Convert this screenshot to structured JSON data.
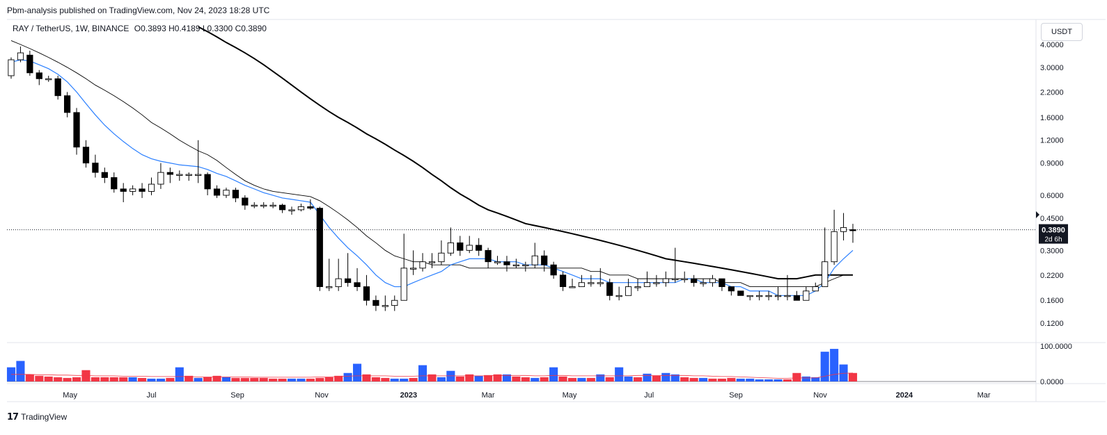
{
  "header": {
    "publisher_line": "Pbm-analysis published on TradingView.com, Nov 24, 2023 18:28 UTC"
  },
  "legend": {
    "symbol": "RAY / TetherUS, 1W, BINANCE",
    "open": "O0.3893",
    "high": "H0.4189",
    "low": "L0.3300",
    "close": "C0.3890"
  },
  "currency": "USDT",
  "price_tag": {
    "price": "0.3890",
    "countdown": "2d 6h"
  },
  "footer": {
    "brand": "TradingView"
  },
  "colors": {
    "up_candle_fill": "#ffffff",
    "down_candle_fill": "#000000",
    "volume_up": "#2962ff",
    "volume_down": "#f23645",
    "ema_fast": "#2a7fff",
    "ma_mid": "#000000",
    "ma_slow": "#000000"
  },
  "chart_data": [
    {
      "type": "candlestick",
      "timeframe": "1W",
      "y_scale": "log",
      "ylim": [
        0.1,
        5.2
      ],
      "y_ticks": [
        "4.0000",
        "3.0000",
        "2.2000",
        "1.6000",
        "1.2000",
        "0.9000",
        "0.6000",
        "0.4500",
        "0.3000",
        "0.2200",
        "0.1600",
        "0.1200"
      ],
      "x_ticks": [
        "May",
        "Jul",
        "Sep",
        "Nov",
        "2023",
        "Mar",
        "May",
        "Jul",
        "Sep",
        "Nov",
        "2024",
        "Mar"
      ],
      "candles": [
        [
          2.7,
          3.3,
          3.4,
          2.6
        ],
        [
          3.3,
          3.6,
          3.9,
          3.2
        ],
        [
          3.5,
          2.8,
          3.7,
          2.7
        ],
        [
          2.8,
          2.6,
          2.9,
          2.4
        ],
        [
          2.6,
          2.6,
          2.7,
          2.5
        ],
        [
          2.6,
          2.1,
          2.7,
          2.0
        ],
        [
          2.1,
          1.7,
          2.2,
          1.6
        ],
        [
          1.7,
          1.1,
          1.8,
          1.0
        ],
        [
          1.1,
          0.9,
          1.2,
          0.85
        ],
        [
          0.9,
          0.8,
          1.0,
          0.75
        ],
        [
          0.8,
          0.75,
          0.85,
          0.7
        ],
        [
          0.75,
          0.65,
          0.8,
          0.62
        ],
        [
          0.65,
          0.63,
          0.7,
          0.55
        ],
        [
          0.63,
          0.65,
          0.68,
          0.6
        ],
        [
          0.65,
          0.63,
          0.7,
          0.58
        ],
        [
          0.63,
          0.69,
          0.75,
          0.6
        ],
        [
          0.69,
          0.8,
          0.9,
          0.65
        ],
        [
          0.8,
          0.78,
          0.85,
          0.7
        ],
        [
          0.78,
          0.78,
          0.82,
          0.72
        ],
        [
          0.78,
          0.78,
          0.8,
          0.72
        ],
        [
          0.78,
          0.78,
          1.2,
          0.7
        ],
        [
          0.78,
          0.65,
          0.8,
          0.6
        ],
        [
          0.65,
          0.6,
          0.68,
          0.58
        ],
        [
          0.6,
          0.64,
          0.66,
          0.58
        ],
        [
          0.64,
          0.58,
          0.66,
          0.55
        ],
        [
          0.58,
          0.53,
          0.6,
          0.5
        ],
        [
          0.53,
          0.53,
          0.55,
          0.51
        ],
        [
          0.53,
          0.53,
          0.55,
          0.51
        ],
        [
          0.53,
          0.53,
          0.55,
          0.51
        ],
        [
          0.53,
          0.5,
          0.54,
          0.48
        ],
        [
          0.5,
          0.5,
          0.52,
          0.47
        ],
        [
          0.5,
          0.52,
          0.54,
          0.49
        ],
        [
          0.52,
          0.51,
          0.57,
          0.5
        ],
        [
          0.51,
          0.19,
          0.52,
          0.18
        ],
        [
          0.19,
          0.19,
          0.27,
          0.18
        ],
        [
          0.19,
          0.21,
          0.27,
          0.18
        ],
        [
          0.21,
          0.2,
          0.29,
          0.19
        ],
        [
          0.2,
          0.19,
          0.24,
          0.18
        ],
        [
          0.19,
          0.16,
          0.22,
          0.15
        ],
        [
          0.16,
          0.15,
          0.17,
          0.14
        ],
        [
          0.15,
          0.15,
          0.17,
          0.14
        ],
        [
          0.15,
          0.16,
          0.17,
          0.14
        ],
        [
          0.16,
          0.24,
          0.37,
          0.16
        ],
        [
          0.24,
          0.24,
          0.3,
          0.22
        ],
        [
          0.24,
          0.26,
          0.29,
          0.23
        ],
        [
          0.26,
          0.26,
          0.29,
          0.24
        ],
        [
          0.26,
          0.29,
          0.34,
          0.25
        ],
        [
          0.29,
          0.33,
          0.4,
          0.28
        ],
        [
          0.33,
          0.3,
          0.36,
          0.28
        ],
        [
          0.3,
          0.32,
          0.36,
          0.29
        ],
        [
          0.32,
          0.3,
          0.35,
          0.28
        ],
        [
          0.3,
          0.26,
          0.31,
          0.24
        ],
        [
          0.26,
          0.26,
          0.28,
          0.25
        ],
        [
          0.26,
          0.25,
          0.28,
          0.23
        ],
        [
          0.25,
          0.25,
          0.27,
          0.24
        ],
        [
          0.25,
          0.25,
          0.26,
          0.23
        ],
        [
          0.25,
          0.28,
          0.33,
          0.24
        ],
        [
          0.28,
          0.25,
          0.3,
          0.23
        ],
        [
          0.25,
          0.22,
          0.26,
          0.21
        ],
        [
          0.22,
          0.19,
          0.23,
          0.18
        ],
        [
          0.19,
          0.19,
          0.21,
          0.19
        ],
        [
          0.19,
          0.2,
          0.22,
          0.19
        ],
        [
          0.2,
          0.2,
          0.22,
          0.19
        ],
        [
          0.2,
          0.2,
          0.24,
          0.19
        ],
        [
          0.2,
          0.17,
          0.21,
          0.16
        ],
        [
          0.17,
          0.17,
          0.19,
          0.16
        ],
        [
          0.17,
          0.19,
          0.21,
          0.17
        ],
        [
          0.19,
          0.19,
          0.21,
          0.18
        ],
        [
          0.19,
          0.2,
          0.23,
          0.19
        ],
        [
          0.2,
          0.2,
          0.22,
          0.19
        ],
        [
          0.2,
          0.21,
          0.23,
          0.19
        ],
        [
          0.21,
          0.21,
          0.31,
          0.2
        ],
        [
          0.21,
          0.21,
          0.23,
          0.2
        ],
        [
          0.21,
          0.2,
          0.22,
          0.19
        ],
        [
          0.2,
          0.2,
          0.21,
          0.19
        ],
        [
          0.2,
          0.21,
          0.22,
          0.19
        ],
        [
          0.21,
          0.19,
          0.21,
          0.18
        ],
        [
          0.19,
          0.18,
          0.19,
          0.17
        ],
        [
          0.18,
          0.17,
          0.18,
          0.17
        ],
        [
          0.17,
          0.17,
          0.17,
          0.16
        ],
        [
          0.17,
          0.17,
          0.18,
          0.16
        ],
        [
          0.17,
          0.17,
          0.18,
          0.16
        ],
        [
          0.17,
          0.17,
          0.19,
          0.16
        ],
        [
          0.17,
          0.17,
          0.22,
          0.16
        ],
        [
          0.17,
          0.16,
          0.18,
          0.16
        ],
        [
          0.16,
          0.18,
          0.19,
          0.16
        ],
        [
          0.18,
          0.19,
          0.2,
          0.18
        ],
        [
          0.19,
          0.26,
          0.4,
          0.19
        ],
        [
          0.26,
          0.38,
          0.5,
          0.25
        ],
        [
          0.38,
          0.4,
          0.48,
          0.34
        ],
        [
          0.3893,
          0.389,
          0.4189,
          0.33
        ]
      ],
      "ema_fast": [
        3.2,
        3.3,
        3.25,
        3.1,
        2.95,
        2.75,
        2.5,
        2.2,
        1.9,
        1.65,
        1.45,
        1.3,
        1.18,
        1.08,
        1.0,
        0.95,
        0.92,
        0.9,
        0.88,
        0.87,
        0.86,
        0.83,
        0.79,
        0.76,
        0.72,
        0.68,
        0.65,
        0.62,
        0.6,
        0.58,
        0.57,
        0.56,
        0.55,
        0.47,
        0.4,
        0.35,
        0.31,
        0.28,
        0.25,
        0.22,
        0.2,
        0.19,
        0.19,
        0.2,
        0.21,
        0.22,
        0.23,
        0.25,
        0.26,
        0.27,
        0.27,
        0.27,
        0.26,
        0.26,
        0.26,
        0.25,
        0.25,
        0.25,
        0.24,
        0.23,
        0.22,
        0.21,
        0.21,
        0.21,
        0.2,
        0.2,
        0.2,
        0.2,
        0.2,
        0.2,
        0.2,
        0.2,
        0.21,
        0.21,
        0.2,
        0.2,
        0.2,
        0.19,
        0.19,
        0.18,
        0.18,
        0.18,
        0.17,
        0.17,
        0.17,
        0.17,
        0.18,
        0.2,
        0.24,
        0.27,
        0.3
      ],
      "ma_mid": [
        4.2,
        4.0,
        3.8,
        3.6,
        3.4,
        3.2,
        3.0,
        2.8,
        2.6,
        2.4,
        2.25,
        2.1,
        1.95,
        1.8,
        1.65,
        1.5,
        1.4,
        1.3,
        1.2,
        1.12,
        1.05,
        1.0,
        0.93,
        0.85,
        0.78,
        0.72,
        0.68,
        0.65,
        0.63,
        0.62,
        0.61,
        0.6,
        0.59,
        0.56,
        0.52,
        0.48,
        0.44,
        0.4,
        0.36,
        0.33,
        0.3,
        0.28,
        0.27,
        0.26,
        0.26,
        0.25,
        0.25,
        0.25,
        0.25,
        0.24,
        0.24,
        0.24,
        0.24,
        0.24,
        0.24,
        0.24,
        0.24,
        0.24,
        0.24,
        0.24,
        0.24,
        0.24,
        0.23,
        0.23,
        0.22,
        0.22,
        0.22,
        0.21,
        0.21,
        0.21,
        0.21,
        0.21,
        0.21,
        0.21,
        0.21,
        0.21,
        0.2,
        0.2,
        0.2,
        0.19,
        0.19,
        0.19,
        0.19,
        0.19,
        0.19,
        0.19,
        0.19,
        0.2,
        0.21,
        0.22,
        0.22
      ],
      "ma_slow_start_index": 20,
      "ma_slow": [
        5.0,
        4.7,
        4.4,
        4.1,
        3.85,
        3.6,
        3.35,
        3.1,
        2.85,
        2.62,
        2.4,
        2.2,
        2.02,
        1.86,
        1.72,
        1.6,
        1.5,
        1.4,
        1.3,
        1.22,
        1.14,
        1.06,
        0.99,
        0.92,
        0.85,
        0.78,
        0.72,
        0.66,
        0.61,
        0.57,
        0.53,
        0.5,
        0.48,
        0.46,
        0.44,
        0.42,
        0.41,
        0.4,
        0.39,
        0.38,
        0.37,
        0.36,
        0.35,
        0.34,
        0.33,
        0.32,
        0.31,
        0.3,
        0.29,
        0.28,
        0.27,
        0.265,
        0.26,
        0.255,
        0.25,
        0.245,
        0.24,
        0.235,
        0.23,
        0.225,
        0.22,
        0.215,
        0.21,
        0.21,
        0.21,
        0.215,
        0.22,
        0.22,
        0.22,
        0.22,
        0.22
      ],
      "current_price_line": 0.389
    },
    {
      "type": "bar",
      "name": "volume",
      "y_ticks": [
        "100.0000",
        "0.0000"
      ],
      "ylim": [
        0,
        100
      ],
      "values": [
        40,
        58,
        20,
        16,
        14,
        12,
        10,
        12,
        32,
        12,
        12,
        12,
        12,
        12,
        10,
        8,
        8,
        10,
        40,
        16,
        10,
        12,
        16,
        12,
        10,
        10,
        10,
        10,
        8,
        8,
        8,
        8,
        8,
        10,
        12,
        16,
        24,
        50,
        20,
        12,
        10,
        8,
        8,
        10,
        46,
        20,
        12,
        30,
        14,
        20,
        16,
        18,
        20,
        20,
        14,
        12,
        10,
        12,
        40,
        14,
        10,
        10,
        10,
        20,
        12,
        40,
        14,
        12,
        22,
        16,
        24,
        20,
        12,
        10,
        10,
        8,
        8,
        10,
        8,
        8,
        6,
        6,
        6,
        6,
        24,
        14,
        12,
        84,
        92,
        48,
        24
      ],
      "colors": [
        "up",
        "up",
        "down",
        "down",
        "down",
        "down",
        "down",
        "down",
        "down",
        "down",
        "down",
        "down",
        "down",
        "up",
        "down",
        "up",
        "up",
        "down",
        "up",
        "down",
        "up",
        "down",
        "down",
        "up",
        "down",
        "down",
        "down",
        "down",
        "down",
        "down",
        "up",
        "up",
        "down",
        "down",
        "down",
        "down",
        "up",
        "up",
        "down",
        "down",
        "down",
        "up",
        "up",
        "down",
        "up",
        "down",
        "up",
        "up",
        "down",
        "down",
        "up",
        "down",
        "down",
        "up",
        "down",
        "down",
        "up",
        "down",
        "up",
        "down",
        "down",
        "up",
        "down",
        "up",
        "down",
        "up",
        "up",
        "down",
        "up",
        "down",
        "up",
        "up",
        "down",
        "down",
        "up",
        "down",
        "down",
        "down",
        "up",
        "up",
        "up",
        "up",
        "up",
        "down",
        "down",
        "up",
        "up",
        "up",
        "up",
        "up",
        "down"
      ],
      "ma": [
        20,
        20,
        20,
        19,
        19,
        18,
        18,
        17,
        17,
        16,
        16,
        16,
        15,
        15,
        15,
        14,
        14,
        14,
        14,
        14,
        13,
        13,
        13,
        13,
        13,
        13,
        12,
        12,
        12,
        12,
        12,
        12,
        12,
        13,
        13,
        14,
        15,
        16,
        16,
        16,
        16,
        15,
        15,
        15,
        16,
        16,
        16,
        16,
        16,
        16,
        16,
        16,
        17,
        17,
        17,
        17,
        16,
        16,
        17,
        17,
        16,
        16,
        16,
        16,
        16,
        16,
        16,
        17,
        17,
        17,
        17,
        17,
        17,
        16,
        16,
        15,
        14,
        14,
        13,
        12,
        11,
        10,
        9,
        9,
        10,
        10,
        10,
        15,
        20,
        23,
        24
      ]
    }
  ]
}
